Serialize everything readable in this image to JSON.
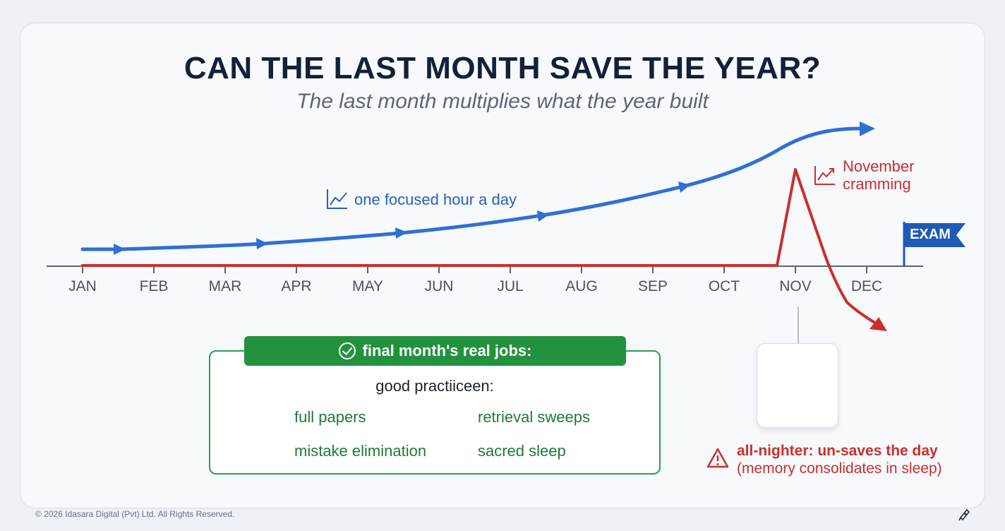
{
  "title": "CAN THE LAST MONTH SAVE THE YEAR?",
  "subtitle": "The last month multiplies what the year built",
  "months": [
    "JAN",
    "FEB",
    "MAR",
    "APR",
    "MAY",
    "JUN",
    "JUL",
    "AUG",
    "SEP",
    "OCT",
    "NOV",
    "DEC"
  ],
  "blue_path": {
    "label": "one focused hour a day",
    "color": "#2f6fd6",
    "icon": "line-chart-icon"
  },
  "red_path": {
    "label_line1": "November",
    "label_line2": "cramming",
    "color": "#c9302c",
    "icon": "spike-chart-icon"
  },
  "exam_flag": {
    "label": "EXAM",
    "color": "#1f5bb5"
  },
  "jobs": {
    "header": "final month's real jobs:",
    "subheader": "good practiiceen:",
    "items": [
      {
        "label": "full papers",
        "icon": "document-icon"
      },
      {
        "label": "retrieval sweeps",
        "icon": "search-icon"
      },
      {
        "label": "mistake elimination",
        "icon": "cancel-circle-icon"
      },
      {
        "label": "sacred sleep",
        "icon": "sleep-moon-icon"
      }
    ],
    "accent": "#23923f"
  },
  "warning": {
    "headline": "all-nighter: un-saves the day",
    "detail": "(memory consolidates in sleep)",
    "icon": "warning-triangle-icon"
  },
  "sleep_card_icon": "moon-crossed-icon",
  "footer": "© 2026 Idasara Digital (Pvt) Ltd. All Rights Reserved."
}
